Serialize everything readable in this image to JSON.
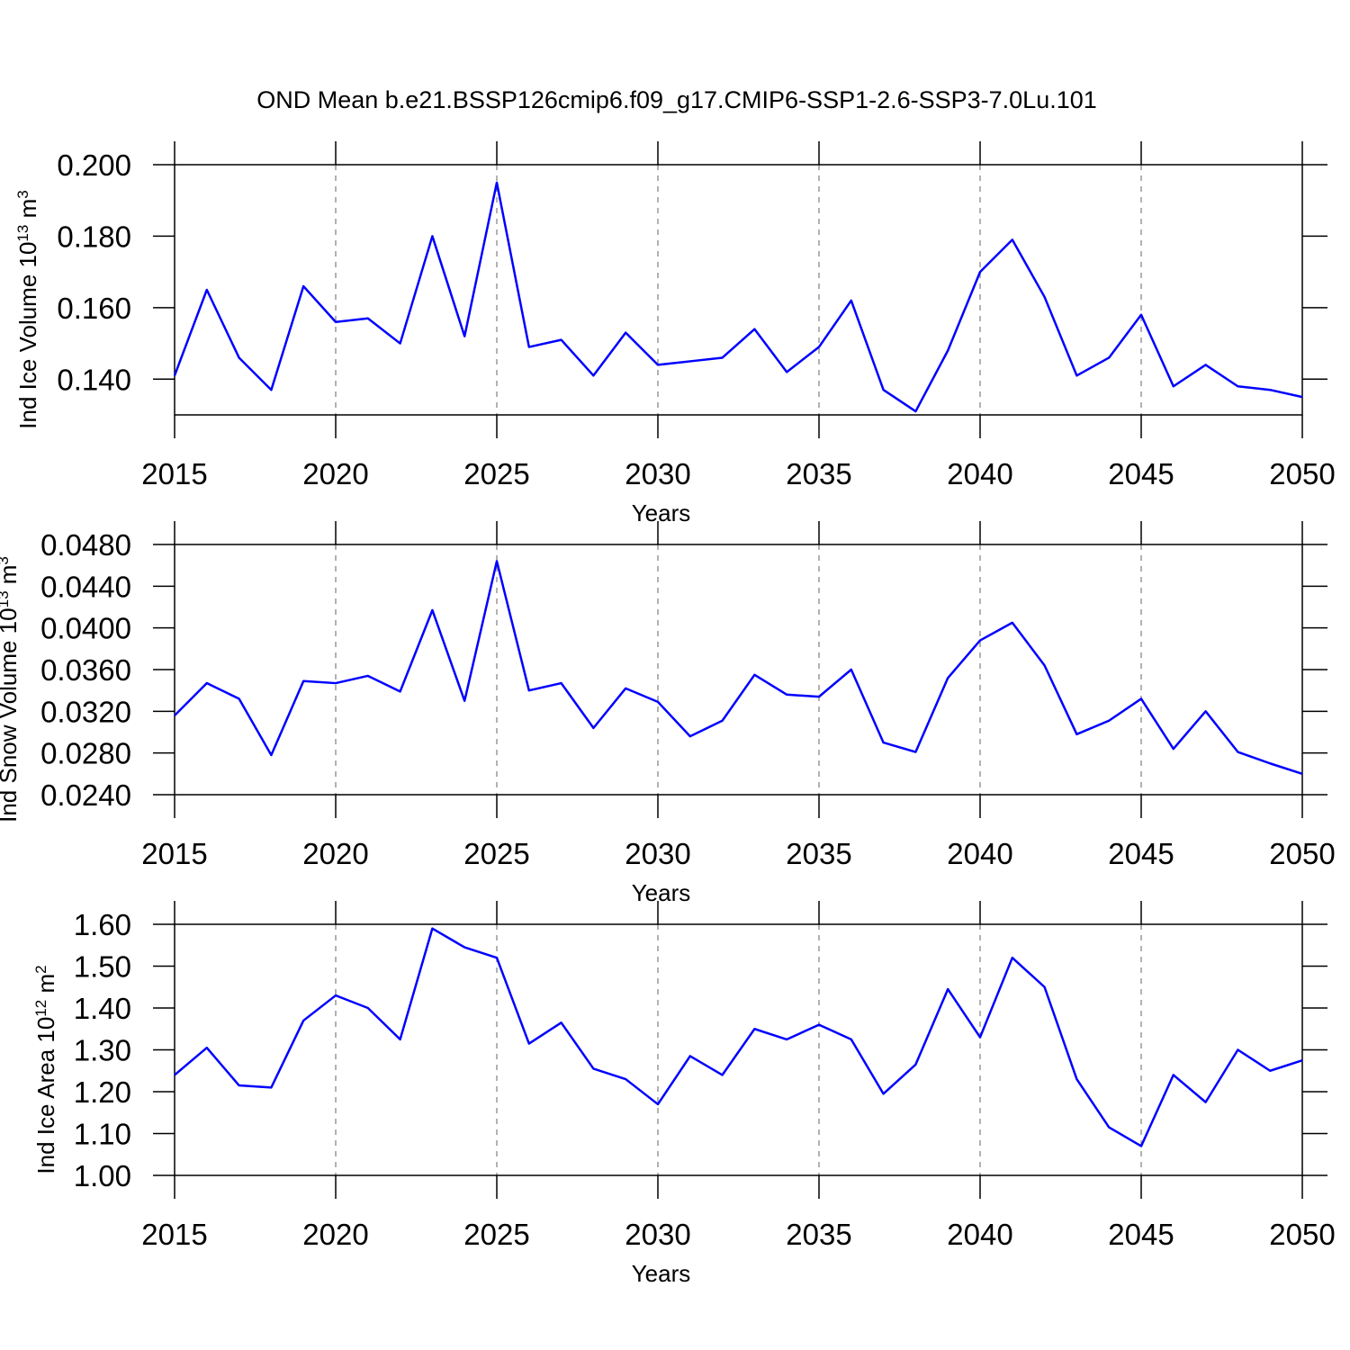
{
  "chart_data": [
    {
      "type": "line",
      "title": "OND Mean b.e21.BSSP126cmip6.f09_g17.CMIP6-SSP1-2.6-SSP3-7.0Lu.101",
      "xlabel": "Years",
      "ylabel": [
        "Ind Ice Volume 10",
        "13",
        " m",
        "3"
      ],
      "x": [
        2015,
        2016,
        2017,
        2018,
        2019,
        2020,
        2021,
        2022,
        2023,
        2024,
        2025,
        2026,
        2027,
        2028,
        2029,
        2030,
        2031,
        2032,
        2033,
        2034,
        2035,
        2036,
        2037,
        2038,
        2039,
        2040,
        2041,
        2042,
        2043,
        2044,
        2045,
        2046,
        2047,
        2048,
        2049,
        2050
      ],
      "series": [
        {
          "color": "#0000ff",
          "values": [
            0.141,
            0.165,
            0.146,
            0.137,
            0.166,
            0.156,
            0.157,
            0.15,
            0.18,
            0.152,
            0.195,
            0.149,
            0.151,
            0.141,
            0.153,
            0.144,
            0.145,
            0.146,
            0.154,
            0.142,
            0.149,
            0.162,
            0.137,
            0.131,
            0.148,
            0.17,
            0.179,
            0.163,
            0.141,
            0.146,
            0.158,
            0.138,
            0.144,
            0.138,
            0.137,
            0.135
          ]
        }
      ],
      "xlim": [
        2015,
        2050
      ],
      "xticks": [
        2015,
        2020,
        2025,
        2030,
        2035,
        2040,
        2045,
        2050
      ],
      "ylim": [
        0.13,
        0.2
      ],
      "yticks": [
        {
          "value": 0.14,
          "label": "0.140"
        },
        {
          "value": 0.16,
          "label": "0.160"
        },
        {
          "value": 0.18,
          "label": "0.180"
        },
        {
          "value": 0.2,
          "label": "0.200"
        }
      ],
      "grid": true
    },
    {
      "type": "line",
      "xlabel": "Years",
      "ylabel": [
        "Ind Snow Volume 10",
        "13",
        " m",
        "3"
      ],
      "x": [
        2015,
        2016,
        2017,
        2018,
        2019,
        2020,
        2021,
        2022,
        2023,
        2024,
        2025,
        2026,
        2027,
        2028,
        2029,
        2030,
        2031,
        2032,
        2033,
        2034,
        2035,
        2036,
        2037,
        2038,
        2039,
        2040,
        2041,
        2042,
        2043,
        2044,
        2045,
        2046,
        2047,
        2048,
        2049,
        2050
      ],
      "series": [
        {
          "color": "#0000ff",
          "values": [
            0.0316,
            0.0347,
            0.0332,
            0.0278,
            0.0349,
            0.0347,
            0.0354,
            0.0339,
            0.0417,
            0.033,
            0.0464,
            0.034,
            0.0347,
            0.0304,
            0.0342,
            0.0329,
            0.0296,
            0.0311,
            0.0355,
            0.0336,
            0.0334,
            0.036,
            0.029,
            0.0281,
            0.0352,
            0.0388,
            0.0405,
            0.0364,
            0.0298,
            0.0311,
            0.0332,
            0.0284,
            0.032,
            0.0281,
            0.027,
            0.026
          ]
        }
      ],
      "xlim": [
        2015,
        2050
      ],
      "xticks": [
        2015,
        2020,
        2025,
        2030,
        2035,
        2040,
        2045,
        2050
      ],
      "ylim": [
        0.024,
        0.048
      ],
      "yticks": [
        {
          "value": 0.024,
          "label": "0.0240"
        },
        {
          "value": 0.028,
          "label": "0.0280"
        },
        {
          "value": 0.032,
          "label": "0.0320"
        },
        {
          "value": 0.036,
          "label": "0.0360"
        },
        {
          "value": 0.04,
          "label": "0.0400"
        },
        {
          "value": 0.044,
          "label": "0.0440"
        },
        {
          "value": 0.048,
          "label": "0.0480"
        }
      ],
      "grid": true
    },
    {
      "type": "line",
      "xlabel": "Years",
      "ylabel": [
        "Ind Ice Area 10",
        "12",
        " m",
        "2"
      ],
      "x": [
        2015,
        2016,
        2017,
        2018,
        2019,
        2020,
        2021,
        2022,
        2023,
        2024,
        2025,
        2026,
        2027,
        2028,
        2029,
        2030,
        2031,
        2032,
        2033,
        2034,
        2035,
        2036,
        2037,
        2038,
        2039,
        2040,
        2041,
        2042,
        2043,
        2044,
        2045,
        2046,
        2047,
        2048,
        2049,
        2050
      ],
      "series": [
        {
          "color": "#0000ff",
          "values": [
            1.24,
            1.305,
            1.215,
            1.21,
            1.37,
            1.43,
            1.4,
            1.325,
            1.59,
            1.545,
            1.52,
            1.315,
            1.365,
            1.255,
            1.23,
            1.17,
            1.285,
            1.24,
            1.35,
            1.325,
            1.36,
            1.325,
            1.195,
            1.265,
            1.445,
            1.33,
            1.52,
            1.45,
            1.23,
            1.115,
            1.07,
            1.24,
            1.175,
            1.3,
            1.25,
            1.275
          ]
        }
      ],
      "xlim": [
        2015,
        2050
      ],
      "xticks": [
        2015,
        2020,
        2025,
        2030,
        2035,
        2040,
        2045,
        2050
      ],
      "ylim": [
        1.0,
        1.6
      ],
      "yticks": [
        {
          "value": 1.0,
          "label": "1.00"
        },
        {
          "value": 1.1,
          "label": "1.10"
        },
        {
          "value": 1.2,
          "label": "1.20"
        },
        {
          "value": 1.3,
          "label": "1.30"
        },
        {
          "value": 1.4,
          "label": "1.40"
        },
        {
          "value": 1.5,
          "label": "1.50"
        },
        {
          "value": 1.6,
          "label": "1.60"
        }
      ],
      "grid": true
    }
  ]
}
